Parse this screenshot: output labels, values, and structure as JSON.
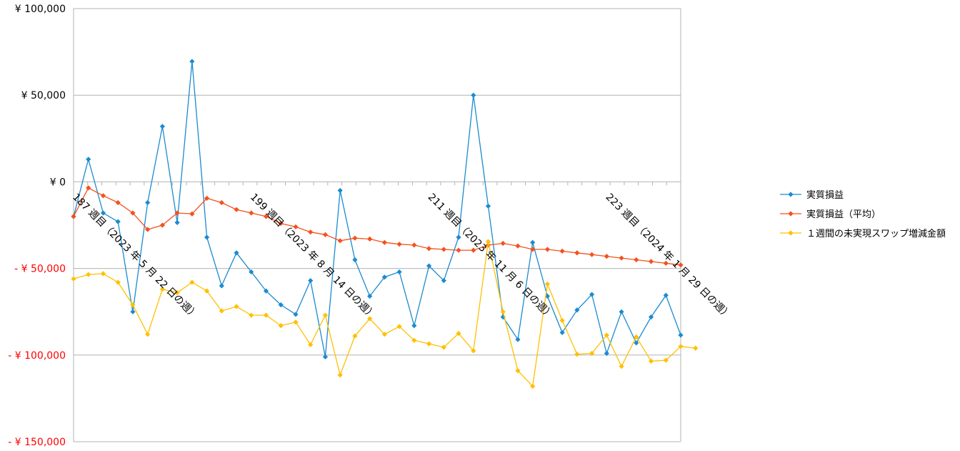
{
  "chart_data": {
    "type": "line",
    "title": "",
    "xlabel": "",
    "ylabel": "",
    "ylim": [
      -150000,
      100000
    ],
    "yticks": [
      100000,
      50000,
      0,
      -50000,
      -100000,
      -150000
    ],
    "ytick_labels": [
      "¥ 100,000",
      "¥ 50,000",
      "¥ 0",
      "- ¥ 50,000",
      "- ¥ 100,000",
      "- ¥ 150,000"
    ],
    "negative_tick_color": "#ff0000",
    "grid": "horizontal",
    "legend_position": "right",
    "x_count": 43,
    "x_tick_labels": [
      {
        "index": 0,
        "label": "187 週目（2023 年 5 月 22 日の週）"
      },
      {
        "index": 12,
        "label": "199 週目（2023 年 8 月 14 日の週）"
      },
      {
        "index": 24,
        "label": "211 週目（2023 年 11 月 6 日の週）"
      },
      {
        "index": 36,
        "label": "223 週目（2024 年 1 月 29 日の週）"
      }
    ],
    "series": [
      {
        "name": "実質損益",
        "color": "#1b8bd0",
        "values": [
          -20000,
          13000,
          -18000,
          -23000,
          -75000,
          -12000,
          32000,
          -23500,
          69500,
          -32000,
          -60000,
          -41000,
          -52000,
          -63000,
          -71000,
          -76500,
          -57000,
          -101000,
          -5000,
          -45000,
          -66000,
          -55000,
          -52000,
          -83000,
          -48500,
          -57000,
          -32000,
          50000,
          -14000,
          -78000,
          -91000,
          -35000,
          -66000,
          -87000,
          -74000,
          -65000,
          -99000,
          -75000,
          -93000,
          -78000,
          -65500,
          -88500
        ]
      },
      {
        "name": "実質損益（平均）",
        "color": "#f4511e",
        "values": [
          -20000,
          -3500,
          -8000,
          -12000,
          -18000,
          -27500,
          -25000,
          -18000,
          -18500,
          -9500,
          -12000,
          -16000,
          -18000,
          -20000,
          -24000,
          -26000,
          -29000,
          -30500,
          -34000,
          -32500,
          -33000,
          -35000,
          -36000,
          -36500,
          -38500,
          -39000,
          -39500,
          -39500,
          -36500,
          -35500,
          -37000,
          -39000,
          -39000,
          -40000,
          -41000,
          -42000,
          -43000,
          -44000,
          -45000,
          -46000,
          -47000,
          -48000
        ]
      },
      {
        "name": "１週間の未実現スワップ増減金額",
        "color": "#ffc000",
        "values": [
          -56000,
          -53500,
          -53000,
          -58000,
          -71000,
          -88000,
          -62000,
          -64000,
          -58000,
          -63000,
          -74500,
          -72000,
          -77000,
          -77000,
          -83000,
          -81000,
          -94000,
          -77000,
          -111500,
          -89000,
          -79000,
          -88000,
          -83500,
          -91500,
          -93500,
          -95500,
          -87500,
          -97500,
          -34500,
          -75000,
          -109000,
          -118000,
          -59000,
          -80000,
          -99500,
          -99000,
          -88500,
          -106500,
          -89500,
          -103500,
          -103000,
          -95000,
          -96000
        ]
      }
    ]
  }
}
